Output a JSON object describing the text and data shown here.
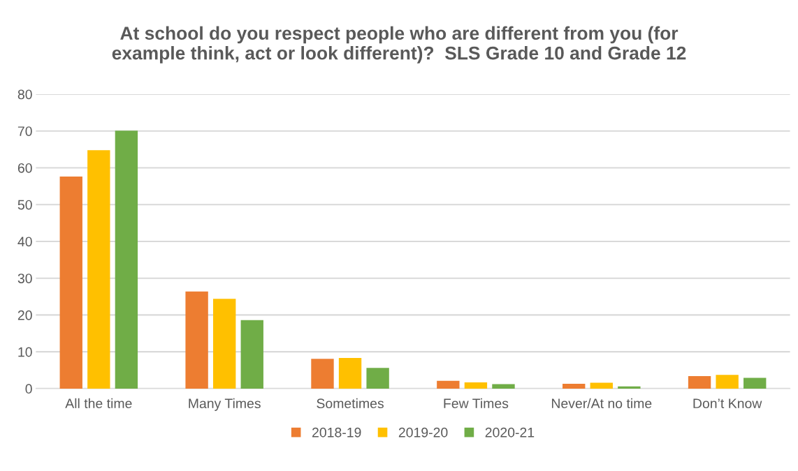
{
  "chart_data": {
    "type": "bar",
    "title": "At school do you respect people who are different from you (for\nexample think, act or look different)?  SLS Grade 10 and Grade 12",
    "categories": [
      "All the time",
      "Many Times",
      "Sometimes",
      "Few Times",
      "Never/At no time",
      "Don’t Know"
    ],
    "series": [
      {
        "name": "2018-19",
        "color": "#ed7d31",
        "values": [
          57.6,
          26.4,
          8.1,
          2.1,
          1.3,
          3.4
        ]
      },
      {
        "name": "2019-20",
        "color": "#ffc000",
        "values": [
          64.8,
          24.4,
          8.3,
          1.7,
          1.6,
          3.7
        ]
      },
      {
        "name": "2020-21",
        "color": "#70ad47",
        "values": [
          70.1,
          18.6,
          5.6,
          1.2,
          0.6,
          2.9
        ]
      }
    ],
    "ylim": [
      0,
      80
    ],
    "yticks": [
      0,
      10,
      20,
      30,
      40,
      50,
      60,
      70,
      80
    ],
    "grid": "y",
    "legend": "bottom"
  }
}
